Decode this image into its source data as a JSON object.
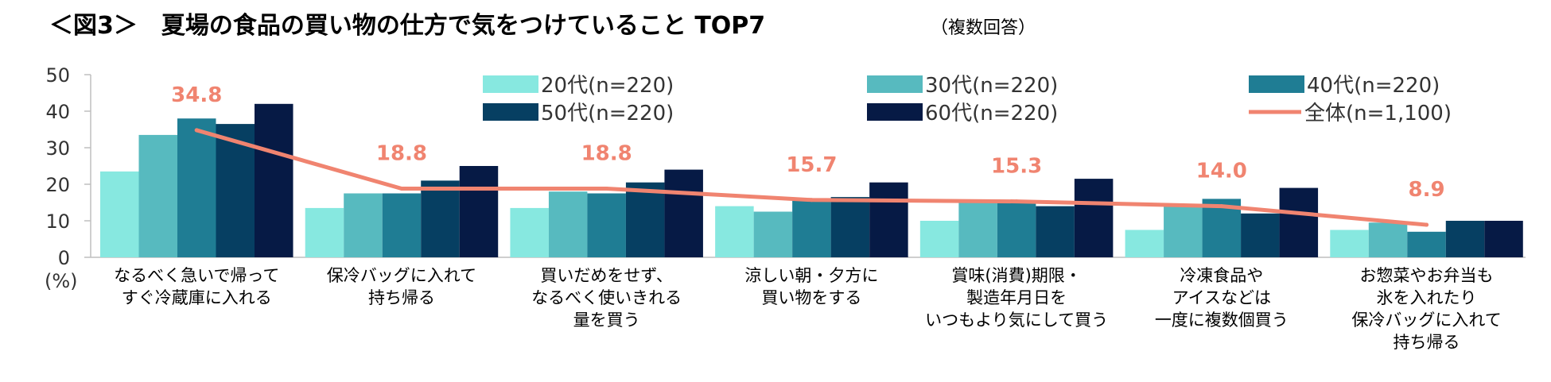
{
  "chart_data": {
    "type": "bar",
    "title": "＜図3＞　夏場の食品の買い物の仕方で気をつけていること TOP7",
    "subtitle": "（複数回答）",
    "unit_label": "(%)",
    "ylim": [
      0,
      50
    ],
    "yticks": [
      "0",
      "10",
      "20",
      "30",
      "40",
      "50"
    ],
    "categories": [
      [
        "なるべく急いで帰って",
        "すぐ冷蔵庫に入れる"
      ],
      [
        "保冷バッグに入れて",
        "持ち帰る"
      ],
      [
        "買いだめをせず、",
        "なるべく使いきれる",
        "量を買う"
      ],
      [
        "涼しい朝・夕方に",
        "買い物をする"
      ],
      [
        "賞味(消費)期限・",
        "製造年月日を",
        "いつもより気にして買う"
      ],
      [
        "冷凍食品や",
        "アイスなどは",
        "一度に複数個買う"
      ],
      [
        "お惣菜やお弁当も",
        "氷を入れたり",
        "保冷バッグに入れて",
        "持ち帰る"
      ]
    ],
    "series": [
      {
        "name": "20代(n=220)",
        "color": "#87e8e0",
        "values": [
          23.5,
          13.5,
          13.5,
          14.0,
          10.0,
          7.5,
          7.5
        ]
      },
      {
        "name": "30代(n=220)",
        "color": "#57babf",
        "values": [
          33.5,
          17.5,
          18.0,
          12.5,
          15.0,
          14.5,
          9.5
        ]
      },
      {
        "name": "40代(n=220)",
        "color": "#1f7d94",
        "values": [
          38.0,
          17.5,
          17.5,
          15.5,
          15.5,
          16.0,
          7.0
        ]
      },
      {
        "name": "50代(n=220)",
        "color": "#063f62",
        "values": [
          36.5,
          21.0,
          20.5,
          16.5,
          14.0,
          12.0,
          10.0
        ]
      },
      {
        "name": "60代(n=220)",
        "color": "#061a45",
        "values": [
          42.0,
          25.0,
          24.0,
          20.5,
          21.5,
          19.0,
          10.0
        ]
      }
    ],
    "line": {
      "name": "全体(n=1,100)",
      "color": "#f08470",
      "values": [
        34.8,
        18.8,
        18.8,
        15.7,
        15.3,
        14.0,
        8.9
      ],
      "labels": [
        "34.8",
        "18.8",
        "18.8",
        "15.7",
        "15.3",
        "14.0",
        "8.9"
      ]
    }
  }
}
